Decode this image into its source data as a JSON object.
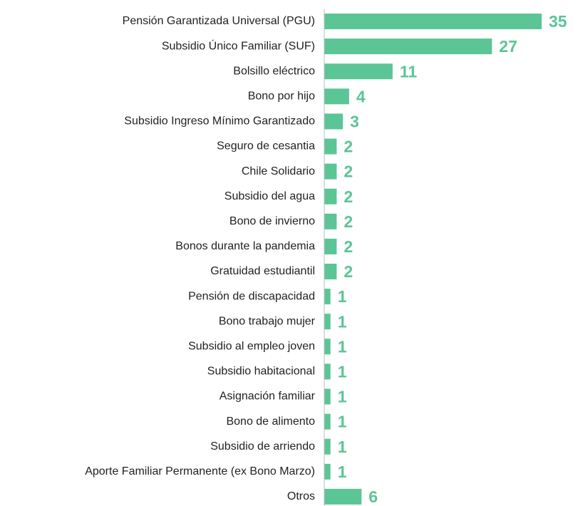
{
  "chart_data": {
    "type": "barh",
    "categories": [
      "Pensión Garantizada Universal (PGU)",
      "Subsidio Único Familiar (SUF)",
      "Bolsillo eléctrico",
      "Bono por hijo",
      "Subsidio Ingreso Mínimo Garantizado",
      "Seguro de cesantia",
      "Chile Solidario",
      "Subsidio del agua",
      "Bono de invierno",
      "Bonos durante la pandemia",
      "Gratuidad estudiantil",
      "Pensión de discapacidad",
      "Bono trabajo mujer",
      "Subsidio al empleo joven",
      "Subsidio habitacional",
      "Asignación familiar",
      "Bono de alimento",
      "Subsidio de arriendo",
      "Aporte Familiar Permanente (ex Bono Marzo)",
      "Otros"
    ],
    "values": [
      35,
      27,
      11,
      4,
      3,
      2,
      2,
      2,
      2,
      2,
      2,
      1,
      1,
      1,
      1,
      1,
      1,
      1,
      1,
      6
    ],
    "color": "#5bc596",
    "xlim": [
      0,
      35
    ]
  }
}
